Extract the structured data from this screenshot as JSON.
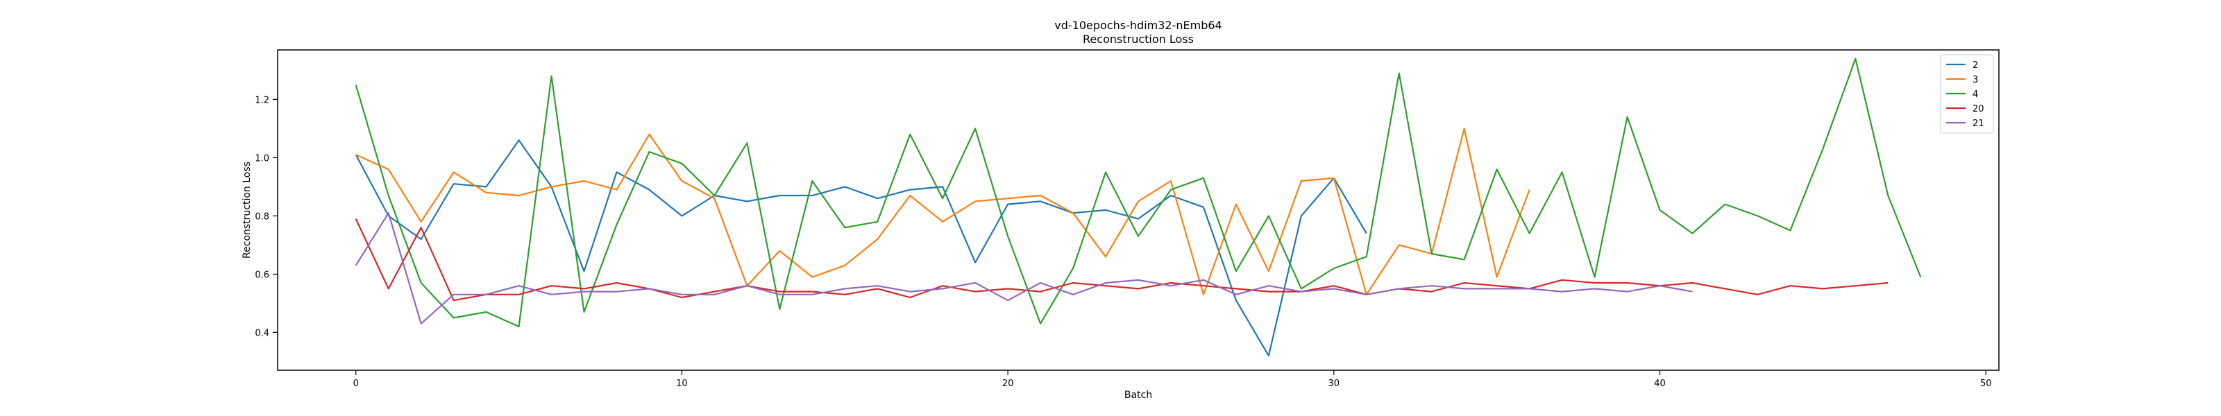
{
  "chart_data": {
    "type": "line",
    "title": "vd-10epochs-hdim32-nEmb64",
    "subtitle": "Reconstruction Loss",
    "xlabel": "Batch",
    "ylabel": "Reconstruction Loss",
    "xlim": [
      -2.4,
      50.4
    ],
    "ylim": [
      0.27,
      1.37
    ],
    "xticks": [
      0,
      10,
      20,
      30,
      40,
      50
    ],
    "yticks": [
      0.4,
      0.6,
      0.8,
      1.0,
      1.2
    ],
    "xtick_labels": [
      "0",
      "10",
      "20",
      "30",
      "40",
      "50"
    ],
    "ytick_labels": [
      "0.4",
      "0.6",
      "0.8",
      "1.0",
      "1.2"
    ],
    "grid": false,
    "legend_position": "top-right",
    "series": [
      {
        "name": "2",
        "color": "#1f77b4",
        "values": [
          1.01,
          0.8,
          0.72,
          0.91,
          0.9,
          1.06,
          0.9,
          0.61,
          0.95,
          0.89,
          0.8,
          0.87,
          0.85,
          0.87,
          0.87,
          0.9,
          0.86,
          0.89,
          0.9,
          0.64,
          0.84,
          0.85,
          0.81,
          0.82,
          0.79,
          0.87,
          0.83,
          0.51,
          0.32,
          0.8,
          0.93,
          0.74
        ]
      },
      {
        "name": "3",
        "color": "#ff7f0e",
        "values": [
          1.01,
          0.96,
          0.78,
          0.95,
          0.88,
          0.87,
          0.9,
          0.92,
          0.89,
          1.08,
          0.92,
          0.86,
          0.56,
          0.68,
          0.59,
          0.63,
          0.72,
          0.87,
          0.78,
          0.85,
          0.86,
          0.87,
          0.81,
          0.66,
          0.85,
          0.92,
          0.53,
          0.84,
          0.61,
          0.92,
          0.93,
          0.53,
          0.7,
          0.67,
          1.1,
          0.59,
          0.89
        ]
      },
      {
        "name": "4",
        "color": "#2ca02c",
        "values": [
          1.25,
          0.87,
          0.57,
          0.45,
          0.47,
          0.42,
          1.28,
          0.47,
          0.77,
          1.02,
          0.98,
          0.87,
          1.05,
          0.48,
          0.92,
          0.76,
          0.78,
          1.08,
          0.86,
          1.1,
          0.73,
          0.43,
          0.62,
          0.95,
          0.73,
          0.89,
          0.93,
          0.61,
          0.8,
          0.55,
          0.62,
          0.66,
          1.29,
          0.67,
          0.65,
          0.96,
          0.74,
          0.95,
          0.59,
          1.14,
          0.82,
          0.74,
          0.84,
          0.8,
          0.75,
          1.03,
          1.34,
          0.87,
          0.59
        ]
      },
      {
        "name": "20",
        "color": "#d62728",
        "values": [
          0.79,
          0.55,
          0.76,
          0.51,
          0.53,
          0.53,
          0.56,
          0.55,
          0.57,
          0.55,
          0.52,
          0.54,
          0.56,
          0.54,
          0.54,
          0.53,
          0.55,
          0.52,
          0.56,
          0.54,
          0.55,
          0.54,
          0.57,
          0.56,
          0.55,
          0.57,
          0.56,
          0.55,
          0.54,
          0.54,
          0.56,
          0.53,
          0.55,
          0.54,
          0.57,
          0.56,
          0.55,
          0.58,
          0.57,
          0.57,
          0.56,
          0.57,
          0.55,
          0.53,
          0.56,
          0.55,
          0.56,
          0.57
        ]
      },
      {
        "name": "21",
        "color": "#9467bd",
        "values": [
          0.63,
          0.81,
          0.43,
          0.53,
          0.53,
          0.56,
          0.53,
          0.54,
          0.54,
          0.55,
          0.53,
          0.53,
          0.56,
          0.53,
          0.53,
          0.55,
          0.56,
          0.54,
          0.55,
          0.57,
          0.51,
          0.57,
          0.53,
          0.57,
          0.58,
          0.56,
          0.58,
          0.53,
          0.56,
          0.54,
          0.55,
          0.53,
          0.55,
          0.56,
          0.55,
          0.55,
          0.55,
          0.54,
          0.55,
          0.54,
          0.56,
          0.54
        ]
      }
    ]
  }
}
